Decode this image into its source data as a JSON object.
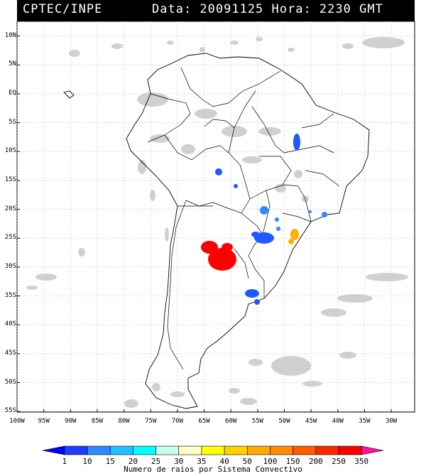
{
  "header": {
    "source": "CPTEC/INPE",
    "datetime": "Data: 20091125 Hora: 2230 GMT"
  },
  "map": {
    "lat_labels": [
      "10N",
      "5N",
      "EQ",
      "5S",
      "10S",
      "15S",
      "20S",
      "25S",
      "30S",
      "35S",
      "40S",
      "45S",
      "50S",
      "55S"
    ],
    "lon_labels": [
      "100W",
      "95W",
      "90W",
      "85W",
      "80W",
      "75W",
      "70W",
      "65W",
      "60W",
      "55W",
      "50W",
      "45W",
      "40W",
      "35W",
      "30W"
    ],
    "colors": {
      "land": "#ffffff",
      "ocean": "#ffffff",
      "cloud": "#c8c8c8",
      "border": "#000000",
      "grid": "#9a9a9a"
    }
  },
  "convective_systems": [
    {
      "region": "Paraguay / NE Argentina",
      "color": "#ff0000",
      "strokes_class": "250-350"
    },
    {
      "region": "Sao Paulo coast",
      "color": "#ffb000",
      "strokes_class": "50-100"
    },
    {
      "region": "Parana",
      "color": "#1e5aff",
      "strokes_class": "10-15"
    },
    {
      "region": "Uruguay",
      "color": "#1e5aff",
      "strokes_class": "10-15"
    },
    {
      "region": "Bahia",
      "color": "#1e5aff",
      "strokes_class": "10-15"
    },
    {
      "region": "Mato Grosso",
      "color": "#1e5aff",
      "strokes_class": "10-15"
    },
    {
      "region": "Mato Grosso do Sul",
      "color": "#2b8cff",
      "strokes_class": "15-20"
    },
    {
      "region": "Minas Gerais",
      "color": "#2b8cff",
      "strokes_class": "15-20"
    }
  ],
  "legend": {
    "labels": [
      "1",
      "10",
      "15",
      "20",
      "25",
      "30",
      "35",
      "40",
      "50",
      "100",
      "150",
      "200",
      "250",
      "350"
    ],
    "colors": [
      "#0000ff",
      "#1e3cff",
      "#2b8cff",
      "#20c0ff",
      "#00ffff",
      "#c8fff0",
      "#ffffc8",
      "#ffff00",
      "#ffd200",
      "#ffaa00",
      "#ff8c00",
      "#ff5a00",
      "#ff2800",
      "#ff0000",
      "#ff1493"
    ],
    "caption": "Numero de raios por Sistema Convectivo"
  }
}
